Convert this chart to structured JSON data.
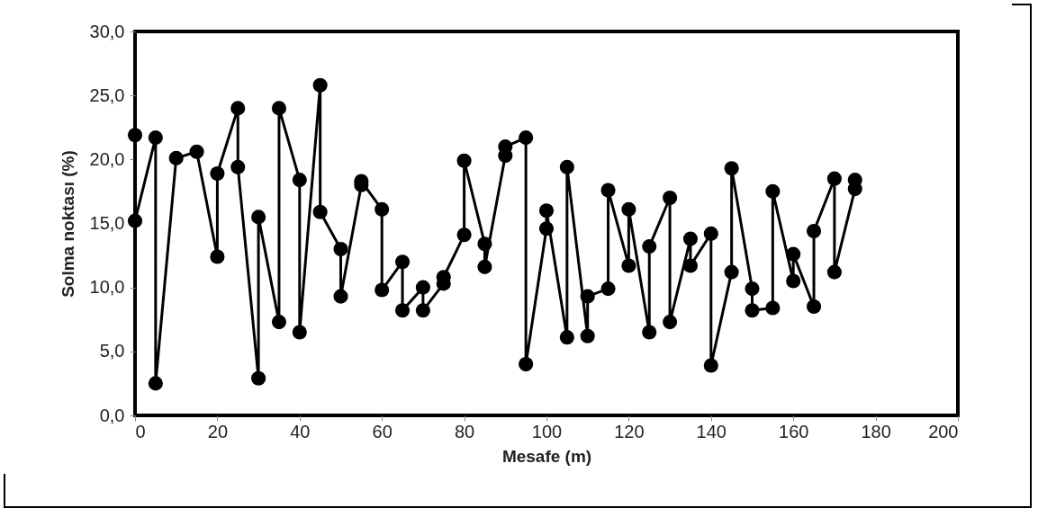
{
  "chart_data": {
    "type": "line",
    "xlabel": "Mesafe (m)",
    "ylabel": "Solma noktası (%)",
    "x": [
      0,
      0,
      5,
      5,
      10,
      15,
      20,
      20,
      25,
      25,
      30,
      30,
      35,
      35,
      40,
      40,
      45,
      45,
      50,
      50,
      55,
      55,
      60,
      60,
      65,
      65,
      70,
      70,
      75,
      75,
      80,
      80,
      85,
      85,
      90,
      90,
      95,
      95,
      100,
      100,
      105,
      105,
      110,
      110,
      115,
      115,
      120,
      120,
      125,
      125,
      130,
      130,
      135,
      135,
      140,
      140,
      145,
      145,
      150,
      150,
      155,
      155,
      160,
      160,
      165,
      165,
      170,
      170,
      175,
      175
    ],
    "series": [
      {
        "color": "#000000",
        "values": [
          21.9,
          15.2,
          21.7,
          2.5,
          20.1,
          20.6,
          12.4,
          18.9,
          24.0,
          19.4,
          2.9,
          15.5,
          7.3,
          24.0,
          18.4,
          6.5,
          25.8,
          15.9,
          13.0,
          9.3,
          18.0,
          18.3,
          16.1,
          9.8,
          12.0,
          8.2,
          10.0,
          8.2,
          10.3,
          10.8,
          14.1,
          19.9,
          13.4,
          11.6,
          20.3,
          21.0,
          21.7,
          4.0,
          14.6,
          16.0,
          6.1,
          19.4,
          6.2,
          9.3,
          9.9,
          17.6,
          11.7,
          16.1,
          6.5,
          13.2,
          17.0,
          7.3,
          13.8,
          11.7,
          14.2,
          3.9,
          11.2,
          19.3,
          9.9,
          8.2,
          8.4,
          17.5,
          10.5,
          12.6,
          8.5,
          14.4,
          18.5,
          11.2,
          17.7,
          18.4
        ]
      }
    ],
    "xlim": [
      0,
      200
    ],
    "xticks": [
      0,
      20,
      40,
      60,
      80,
      100,
      120,
      140,
      160,
      180,
      200
    ],
    "ylim": [
      0,
      30
    ],
    "yticks": [
      {
        "value": 0,
        "label": "0,0"
      },
      {
        "value": 5,
        "label": "5,0"
      },
      {
        "value": 10,
        "label": "10,0"
      },
      {
        "value": 15,
        "label": "15,0"
      },
      {
        "value": 20,
        "label": "20,0"
      },
      {
        "value": 25,
        "label": "25,0"
      },
      {
        "value": 30,
        "label": "30,0"
      }
    ],
    "marker": "circle",
    "line_style": "solid",
    "grid": false,
    "legend": false
  }
}
